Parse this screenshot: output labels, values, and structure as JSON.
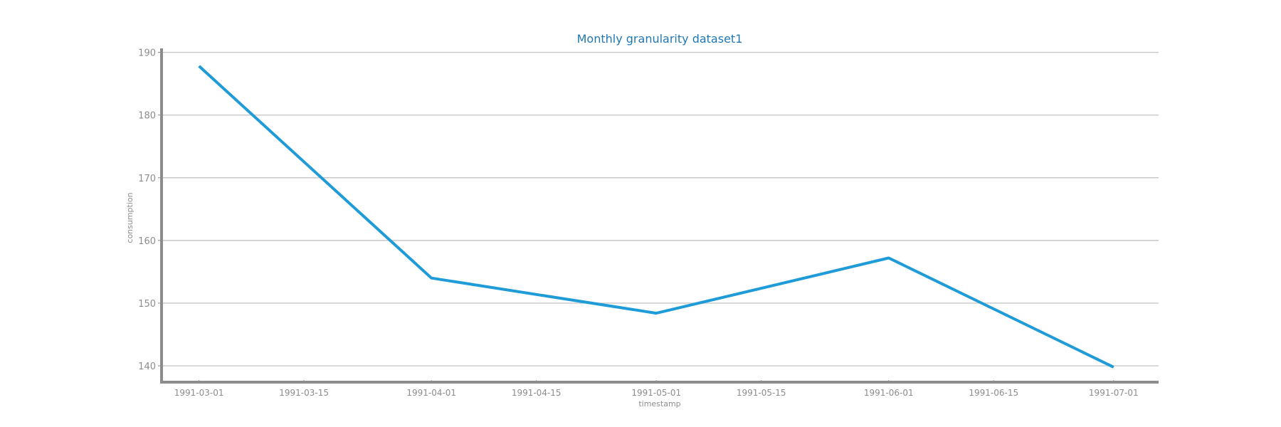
{
  "chart_data": {
    "type": "line",
    "title": "Monthly granularity dataset1",
    "xlabel": "timestamp",
    "ylabel": "consumption",
    "x": [
      "1991-03-01",
      "1991-04-01",
      "1991-05-01",
      "1991-06-01",
      "1991-07-01"
    ],
    "series": [
      {
        "values": [
          187.8,
          154.0,
          148.4,
          157.2,
          139.8
        ],
        "color": "#1f9bd7"
      }
    ],
    "x_ticks": [
      "1991-03-01",
      "1991-03-15",
      "1991-04-01",
      "1991-04-15",
      "1991-05-01",
      "1991-05-15",
      "1991-06-01",
      "1991-06-15",
      "1991-07-01"
    ],
    "y_ticks": [
      140,
      150,
      160,
      170,
      180,
      190
    ],
    "xlim": [
      "1991-02-24",
      "1991-07-07"
    ],
    "ylim": [
      137.4,
      190.4
    ],
    "grid": "horizontal",
    "colors": {
      "title": "#1f77b4",
      "axis": "#8c8c8c",
      "grid": "#c8c8c8"
    }
  }
}
